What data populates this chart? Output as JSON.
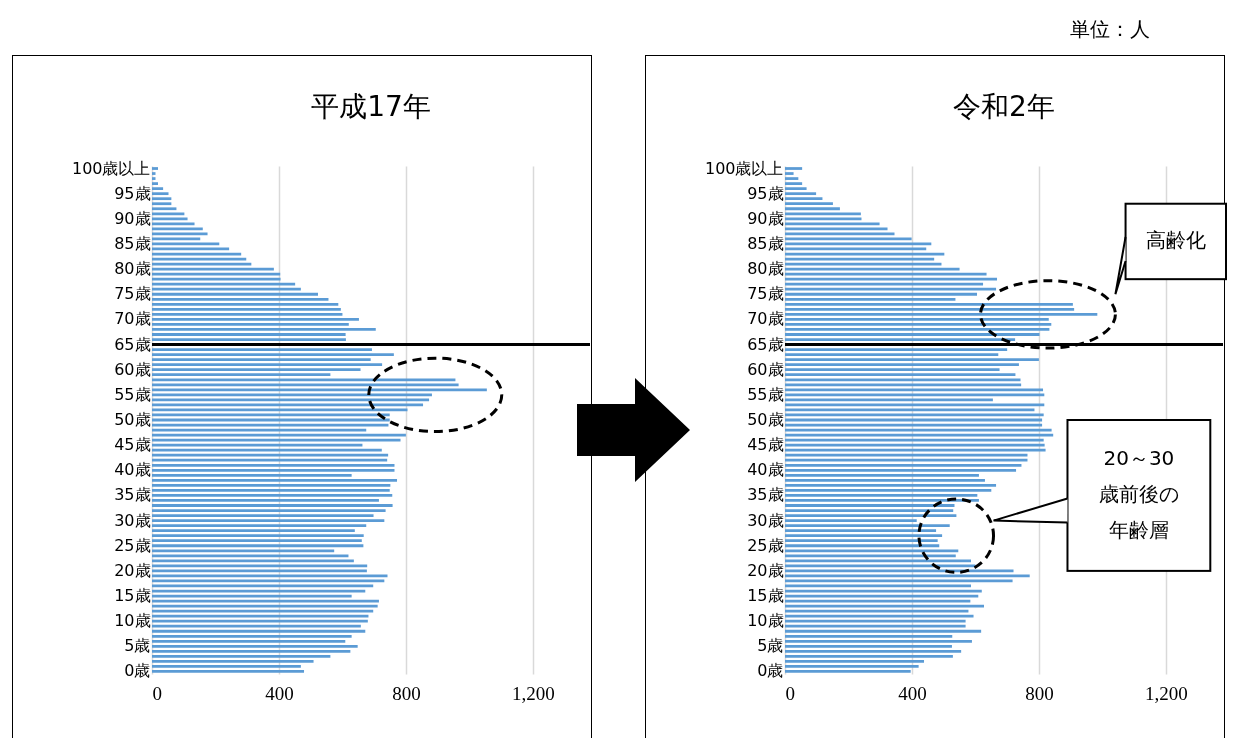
{
  "chart_data": [
    {
      "type": "bar",
      "orientation": "horizontal",
      "title": "平成17年",
      "color": "#5b9bd5",
      "grid": "x",
      "xlim": [
        0,
        1380
      ],
      "xticks": [
        0,
        400,
        800,
        {
          "value": 1200,
          "label": "1,200"
        }
      ],
      "categories": [
        "100歳以上",
        null,
        null,
        null,
        null,
        "95歳",
        null,
        null,
        null,
        null,
        "90歳",
        null,
        null,
        null,
        null,
        "85歳",
        null,
        null,
        null,
        null,
        "80歳",
        null,
        null,
        null,
        null,
        "75歳",
        null,
        null,
        null,
        null,
        "70歳",
        null,
        null,
        null,
        null,
        "65歳",
        null,
        null,
        null,
        null,
        "60歳",
        null,
        null,
        null,
        null,
        "55歳",
        null,
        null,
        null,
        null,
        "50歳",
        null,
        null,
        null,
        null,
        "45歳",
        null,
        null,
        null,
        null,
        "40歳",
        null,
        null,
        null,
        null,
        "35歳",
        null,
        null,
        null,
        null,
        "30歳",
        null,
        null,
        null,
        null,
        "25歳",
        null,
        null,
        null,
        null,
        "20歳",
        null,
        null,
        null,
        null,
        "15歳",
        null,
        null,
        null,
        null,
        "10歳",
        null,
        null,
        null,
        null,
        "5歳",
        null,
        null,
        null,
        null,
        "0歳"
      ],
      "values": [
        19,
        11,
        11,
        19,
        35,
        52,
        61,
        61,
        77,
        102,
        112,
        134,
        160,
        175,
        152,
        212,
        243,
        281,
        297,
        313,
        384,
        404,
        405,
        451,
        469,
        523,
        556,
        587,
        595,
        600,
        652,
        620,
        705,
        610,
        611,
        null,
        693,
        762,
        689,
        725,
        657,
        562,
        956,
        966,
        1055,
        882,
        873,
        854,
        805,
        749,
        749,
        745,
        675,
        800,
        783,
        663,
        724,
        744,
        741,
        764,
        764,
        629,
        772,
        751,
        749,
        757,
        715,
        758,
        736,
        698,
        732,
        675,
        639,
        667,
        661,
        666,
        574,
        619,
        636,
        678,
        677,
        742,
        732,
        697,
        672,
        629,
        715,
        711,
        697,
        682,
        680,
        658,
        672,
        629,
        609,
        648,
        625,
        562,
        509,
        469,
        479
      ],
      "ref_lines": [
        {
          "axis": "y",
          "value": "65歳",
          "color": "#000000"
        }
      ]
    },
    {
      "type": "bar",
      "orientation": "horizontal",
      "title": "令和2年",
      "color": "#5b9bd5",
      "grid": "x",
      "xlim": [
        0,
        1380
      ],
      "xticks": [
        0,
        400,
        800,
        {
          "value": 1200,
          "label": "1,200"
        }
      ],
      "categories": [
        "100歳以上",
        null,
        null,
        null,
        null,
        "95歳",
        null,
        null,
        null,
        null,
        "90歳",
        null,
        null,
        null,
        null,
        "85歳",
        null,
        null,
        null,
        null,
        "80歳",
        null,
        null,
        null,
        null,
        "75歳",
        null,
        null,
        null,
        null,
        "70歳",
        null,
        null,
        null,
        null,
        "65歳",
        null,
        null,
        null,
        null,
        "60歳",
        null,
        null,
        null,
        null,
        "55歳",
        null,
        null,
        null,
        null,
        "50歳",
        null,
        null,
        null,
        null,
        "45歳",
        null,
        null,
        null,
        null,
        "40歳",
        null,
        null,
        null,
        null,
        "35歳",
        null,
        null,
        null,
        null,
        "30歳",
        null,
        null,
        null,
        null,
        "25歳",
        null,
        null,
        null,
        null,
        "20歳",
        null,
        null,
        null,
        null,
        "15歳",
        null,
        null,
        null,
        null,
        "10歳",
        null,
        null,
        null,
        null,
        "5歳",
        null,
        null,
        null,
        null,
        "0歳"
      ],
      "values": [
        54,
        27,
        42,
        54,
        68,
        98,
        118,
        151,
        173,
        239,
        241,
        298,
        323,
        345,
        399,
        461,
        445,
        502,
        470,
        493,
        550,
        635,
        668,
        624,
        665,
        605,
        537,
        907,
        911,
        984,
        831,
        839,
        833,
        802,
        725,
        null,
        700,
        672,
        800,
        737,
        676,
        726,
        742,
        744,
        813,
        817,
        655,
        817,
        786,
        815,
        810,
        810,
        840,
        845,
        815,
        818,
        821,
        764,
        764,
        745,
        728,
        611,
        630,
        665,
        650,
        606,
        611,
        534,
        530,
        540,
        415,
        519,
        476,
        495,
        481,
        486,
        546,
        538,
        586,
        600,
        720,
        771,
        717,
        586,
        620,
        609,
        584,
        627,
        578,
        594,
        569,
        569,
        618,
        527,
        589,
        526,
        555,
        529,
        438,
        421,
        396
      ],
      "ref_lines": [
        {
          "axis": "y",
          "value": "65歳",
          "color": "#000000"
        }
      ],
      "annotations": [
        "単位：人",
        "高齢化",
        "20～30 歳前後の年齢層"
      ]
    }
  ]
}
